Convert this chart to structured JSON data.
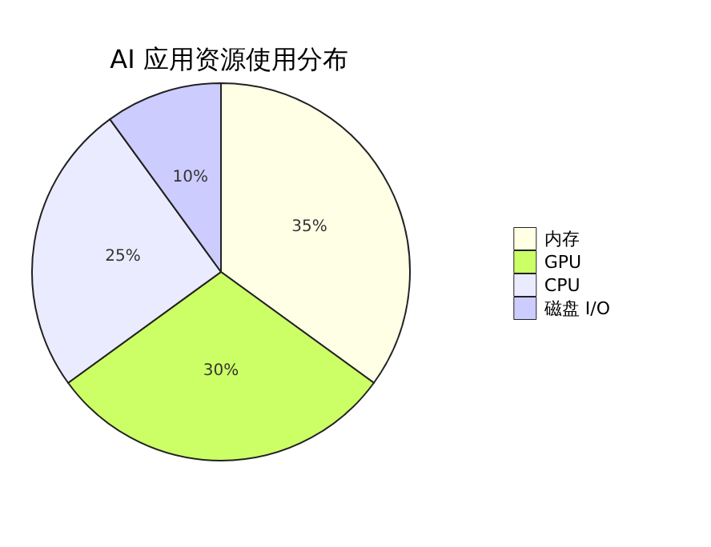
{
  "chart_data": {
    "type": "pie",
    "title": "AI 应用资源使用分布",
    "categories": [
      "内存",
      "GPU",
      "CPU",
      "磁盘 I/O"
    ],
    "values": [
      35,
      30,
      25,
      10
    ],
    "value_labels": [
      "35%",
      "30%",
      "25%",
      "10%"
    ],
    "colors": [
      "#ffffe6",
      "#ccff66",
      "#ebebff",
      "#ccccff"
    ],
    "legend": "right"
  }
}
